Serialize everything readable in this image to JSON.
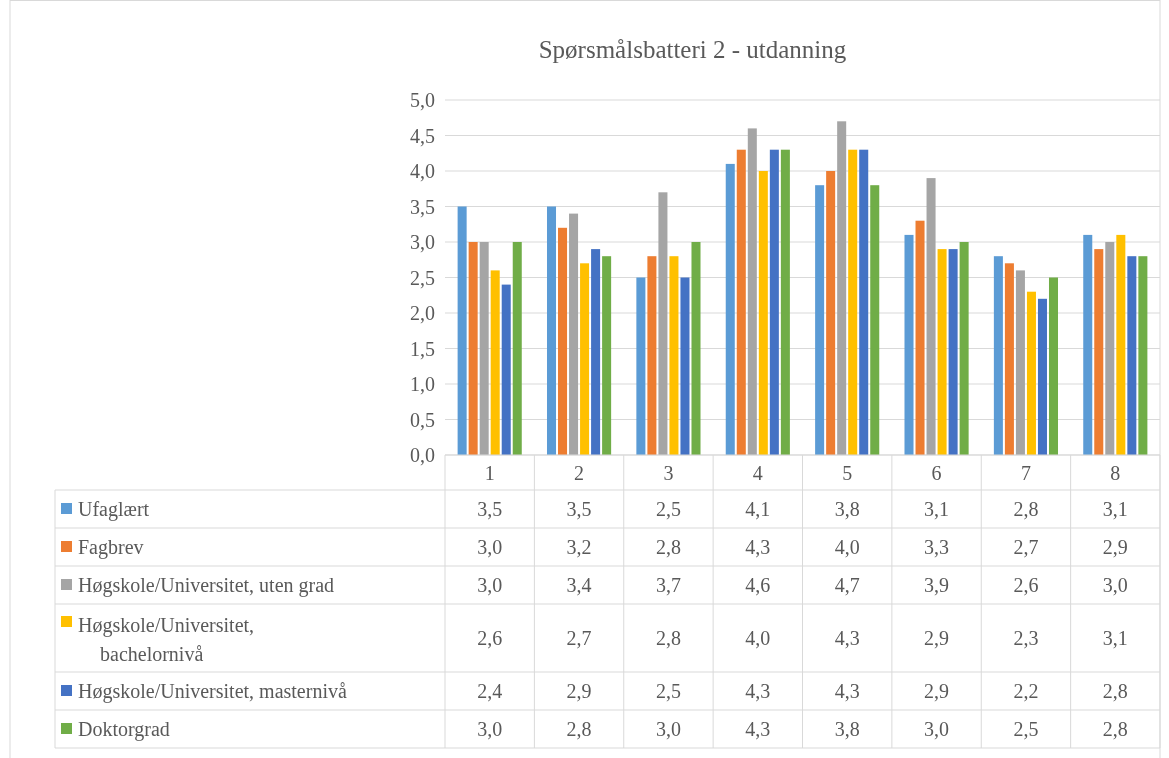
{
  "chart_data": {
    "type": "bar",
    "title": "Spørsmålsbatteri 2 - utdanning",
    "categories": [
      "1",
      "2",
      "3",
      "4",
      "5",
      "6",
      "7",
      "8"
    ],
    "ylim": [
      0,
      5
    ],
    "yticks": [
      {
        "value": 0,
        "label": "0,0"
      },
      {
        "value": 0.5,
        "label": "0,5"
      },
      {
        "value": 1,
        "label": "1,0"
      },
      {
        "value": 1.5,
        "label": "1,5"
      },
      {
        "value": 2,
        "label": "2,0"
      },
      {
        "value": 2.5,
        "label": "2,5"
      },
      {
        "value": 3,
        "label": "3,0"
      },
      {
        "value": 3.5,
        "label": "3,5"
      },
      {
        "value": 4,
        "label": "4,0"
      },
      {
        "value": 4.5,
        "label": "4,5"
      },
      {
        "value": 5,
        "label": "5,0"
      }
    ],
    "grid": "y",
    "legend": "bottom",
    "series": [
      {
        "name": "Ufaglært",
        "color": "#5b9bd5",
        "values": [
          3.5,
          3.5,
          2.5,
          4.1,
          3.8,
          3.1,
          2.8,
          3.1
        ],
        "value_labels": [
          "3,5",
          "3,5",
          "2,5",
          "4,1",
          "3,8",
          "3,1",
          "2,8",
          "3,1"
        ]
      },
      {
        "name": "Fagbrev",
        "color": "#ed7d31",
        "values": [
          3.0,
          3.2,
          2.8,
          4.3,
          4.0,
          3.3,
          2.7,
          2.9
        ],
        "value_labels": [
          "3,0",
          "3,2",
          "2,8",
          "4,3",
          "4,0",
          "3,3",
          "2,7",
          "2,9"
        ]
      },
      {
        "name": "Høgskole/Universitet, uten grad",
        "color": "#a5a5a5",
        "values": [
          3.0,
          3.4,
          3.7,
          4.6,
          4.7,
          3.9,
          2.6,
          3.0
        ],
        "value_labels": [
          "3,0",
          "3,4",
          "3,7",
          "4,6",
          "4,7",
          "3,9",
          "2,6",
          "3,0"
        ]
      },
      {
        "name": "Høgskole/Universitet, bachelornivå",
        "color": "#ffc000",
        "values": [
          2.6,
          2.7,
          2.8,
          4.0,
          4.3,
          2.9,
          2.3,
          3.1
        ],
        "value_labels": [
          "2,6",
          "2,7",
          "2,8",
          "4,0",
          "4,3",
          "2,9",
          "2,3",
          "3,1"
        ]
      },
      {
        "name": "Høgskole/Universitet, masternivå",
        "color": "#4472c4",
        "values": [
          2.4,
          2.9,
          2.5,
          4.3,
          4.3,
          2.9,
          2.2,
          2.8
        ],
        "value_labels": [
          "2,4",
          "2,9",
          "2,5",
          "4,3",
          "4,3",
          "2,9",
          "2,2",
          "2,8"
        ]
      },
      {
        "name": "Doktorgrad",
        "color": "#70ad47",
        "values": [
          3.0,
          2.8,
          3.0,
          4.3,
          3.8,
          3.0,
          2.5,
          2.8
        ],
        "value_labels": [
          "3,0",
          "2,8",
          "3,0",
          "4,3",
          "3,8",
          "3,0",
          "2,5",
          "2,8"
        ]
      }
    ]
  }
}
